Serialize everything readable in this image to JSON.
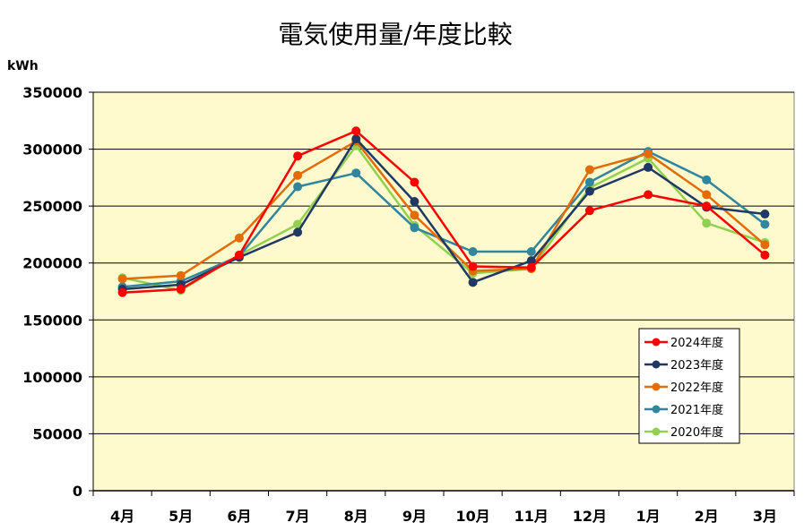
{
  "chart_data": {
    "type": "line",
    "title": "電気使用量/年度比較",
    "ylabel": "kWh",
    "xlabel": "",
    "categories": [
      "4月",
      "5月",
      "6月",
      "7月",
      "8月",
      "9月",
      "10月",
      "11月",
      "12月",
      "1月",
      "2月",
      "3月"
    ],
    "ylim": [
      0,
      350000
    ],
    "yticks": [
      0,
      50000,
      100000,
      150000,
      200000,
      250000,
      300000,
      350000
    ],
    "grid": true,
    "legend_position": "bottom-right",
    "plot_background": "#FFFACD",
    "series": [
      {
        "name": "2024年度",
        "color": "#FF0000",
        "values": [
          174000,
          177000,
          207000,
          294000,
          316000,
          271000,
          197000,
          196000,
          246000,
          260000,
          250000,
          207000
        ]
      },
      {
        "name": "2023年度",
        "color": "#1F3864",
        "values": [
          177000,
          181000,
          205000,
          227000,
          309000,
          254000,
          183000,
          202000,
          263000,
          284000,
          249000,
          243000
        ]
      },
      {
        "name": "2022年度",
        "color": "#E36C09",
        "values": [
          186000,
          189000,
          222000,
          277000,
          307000,
          242000,
          193000,
          195000,
          282000,
          296000,
          260000,
          216000
        ]
      },
      {
        "name": "2021年度",
        "color": "#31859C",
        "values": [
          179000,
          184000,
          206000,
          267000,
          279000,
          231000,
          210000,
          210000,
          271000,
          298000,
          273000,
          234000
        ]
      },
      {
        "name": "2020年度",
        "color": "#92D050",
        "values": [
          187000,
          176000,
          207000,
          234000,
          303000,
          233000,
          191000,
          195000,
          266000,
          292000,
          235000,
          218000
        ]
      }
    ]
  }
}
